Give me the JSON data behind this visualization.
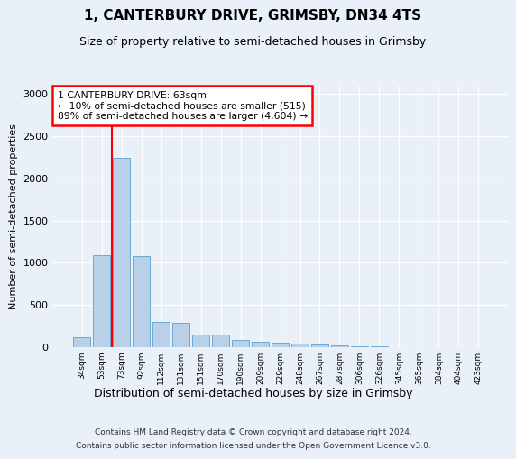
{
  "title": "1, CANTERBURY DRIVE, GRIMSBY, DN34 4TS",
  "subtitle": "Size of property relative to semi-detached houses in Grimsby",
  "xlabel": "Distribution of semi-detached houses by size in Grimsby",
  "ylabel": "Number of semi-detached properties",
  "categories": [
    "34sqm",
    "53sqm",
    "73sqm",
    "92sqm",
    "112sqm",
    "131sqm",
    "151sqm",
    "170sqm",
    "190sqm",
    "209sqm",
    "229sqm",
    "248sqm",
    "267sqm",
    "287sqm",
    "306sqm",
    "326sqm",
    "345sqm",
    "365sqm",
    "384sqm",
    "404sqm",
    "423sqm"
  ],
  "values": [
    120,
    1090,
    2240,
    1080,
    300,
    290,
    155,
    155,
    90,
    65,
    55,
    40,
    30,
    20,
    12,
    8,
    5,
    4,
    3,
    2,
    2
  ],
  "bar_color": "#b8d0e8",
  "bar_edge_color": "#6aaad4",
  "annotation_text": "1 CANTERBURY DRIVE: 63sqm\n← 10% of semi-detached houses are smaller (515)\n89% of semi-detached houses are larger (4,604) →",
  "ylim": [
    0,
    3100
  ],
  "yticks": [
    0,
    500,
    1000,
    1500,
    2000,
    2500,
    3000
  ],
  "footer1": "Contains HM Land Registry data © Crown copyright and database right 2024.",
  "footer2": "Contains public sector information licensed under the Open Government Licence v3.0.",
  "bg_color": "#eaf0f8",
  "plot_bg_color": "#eaf0f8",
  "vline_x": 1.5,
  "title_fontsize": 11,
  "subtitle_fontsize": 9
}
